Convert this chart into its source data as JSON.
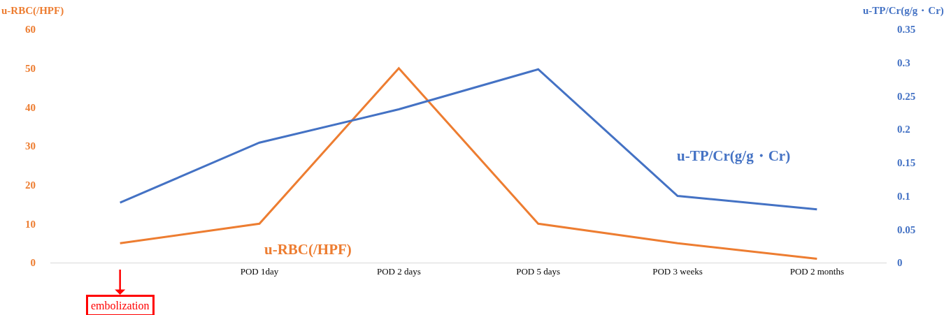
{
  "chart_data": {
    "type": "line",
    "ylabel": "u-RBC(/HPF)",
    "y2label": "u-TP/Cr(g/g・Cr)",
    "categories": [
      null,
      "POD 1day",
      "POD 2 days",
      "POD 5 days",
      "POD 3 weeks",
      "POD 2 months"
    ],
    "series": [
      {
        "name": "u-RBC(/HPF)",
        "color": "#ed7d31",
        "values": [
          5,
          10,
          50,
          10,
          5,
          1
        ]
      },
      {
        "name": "u-TP/Cr(g/g・Cr)",
        "color": "#4472c4",
        "axis": "y2",
        "values": [
          0.09,
          0.18,
          0.23,
          0.29,
          0.1,
          0.08
        ]
      }
    ],
    "ylim": [
      0,
      60
    ],
    "yticks": [
      0,
      10,
      20,
      30,
      40,
      50,
      60
    ],
    "y2lim": [
      0,
      0.35
    ],
    "y2ticks": [
      0,
      0.05,
      0.1,
      0.15,
      0.2,
      0.25,
      0.3,
      0.35
    ],
    "annotations": [
      "embolization"
    ],
    "grid": false,
    "legend": false,
    "marker": "none",
    "line_style": "solid"
  }
}
